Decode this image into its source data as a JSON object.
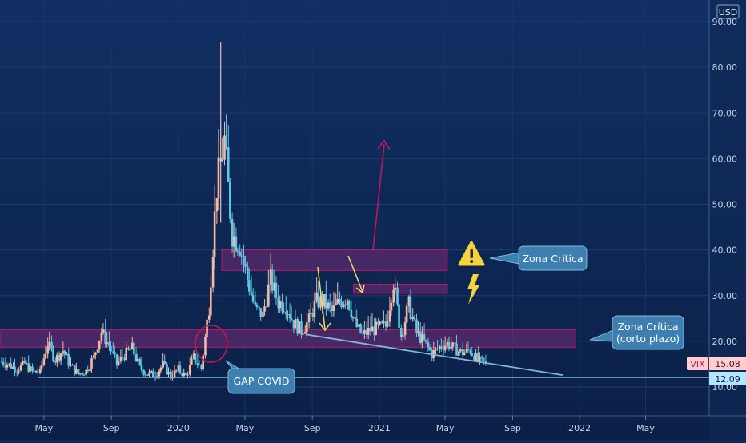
{
  "currency_label": "USD",
  "symbol_label": "VIX",
  "last_price_label": "15.08",
  "support_price_label": "12.09",
  "annotations": {
    "zona_critica": "Zona Crítica",
    "zona_critica_corto_1": "Zona Crítica",
    "zona_critica_corto_2": "(corto plazo)",
    "gap_covid": "GAP COVID"
  },
  "colors": {
    "background": "#0f2a57",
    "up_candle": "#5ec8e6",
    "down_candle": "#f2b9a7",
    "zone_fill": "#5b2a6e",
    "zone_stroke": "#c2185b",
    "trendline": "#7fb8dc",
    "arrow": "#c2185b",
    "yellow_arrow": "#f5d76e",
    "callout": "#3d7fb0",
    "last_price_badge": "#ffcdd2",
    "support_badge": "#b3e5fc"
  },
  "chart_data": {
    "type": "candlestick",
    "title": "",
    "ylabel": "",
    "xlabel": "",
    "ylim": [
      0,
      92
    ],
    "y_ticks": [
      10,
      20,
      30,
      40,
      50,
      60,
      70,
      80,
      90
    ],
    "y_tick_labels": [
      "10.00",
      "20.00",
      "30.00",
      "40.00",
      "50.00",
      "60.00",
      "70.00",
      "80.00",
      "90.00"
    ],
    "x_tick_labels": [
      {
        "label": "May",
        "date": "2019-05-01"
      },
      {
        "label": "Sep",
        "date": "2019-09-01"
      },
      {
        "label": "2020",
        "date": "2020-01-01"
      },
      {
        "label": "May",
        "date": "2020-05-01"
      },
      {
        "label": "Sep",
        "date": "2020-09-01"
      },
      {
        "label": "2021",
        "date": "2021-01-01"
      },
      {
        "label": "May",
        "date": "2021-05-01"
      },
      {
        "label": "Sep",
        "date": "2021-09-01"
      },
      {
        "label": "2022",
        "date": "2022-01-01"
      },
      {
        "label": "May",
        "date": "2022-05-01"
      }
    ],
    "xlim": [
      "2019-02-10",
      "2022-08-25"
    ],
    "series": [
      {
        "values": [
          {
            "date": "2019-02-13",
            "close": 15.5
          },
          {
            "date": "2019-02-27",
            "close": 14.8
          },
          {
            "date": "2019-03-13",
            "close": 13.9
          },
          {
            "date": "2019-03-27",
            "close": 15.1
          },
          {
            "date": "2019-04-10",
            "close": 13.3
          },
          {
            "date": "2019-04-24",
            "close": 13.2
          },
          {
            "date": "2019-05-08",
            "close": 19.5
          },
          {
            "date": "2019-05-22",
            "close": 16.0
          },
          {
            "date": "2019-06-05",
            "close": 18.0
          },
          {
            "date": "2019-06-19",
            "close": 14.5
          },
          {
            "date": "2019-07-03",
            "close": 12.8
          },
          {
            "date": "2019-07-17",
            "close": 13.5
          },
          {
            "date": "2019-07-31",
            "close": 16.5
          },
          {
            "date": "2019-08-14",
            "close": 22.1
          },
          {
            "date": "2019-08-28",
            "close": 19.0
          },
          {
            "date": "2019-09-11",
            "close": 15.0
          },
          {
            "date": "2019-09-25",
            "close": 17.0
          },
          {
            "date": "2019-10-09",
            "close": 18.5
          },
          {
            "date": "2019-10-23",
            "close": 14.2
          },
          {
            "date": "2019-11-06",
            "close": 12.8
          },
          {
            "date": "2019-11-20",
            "close": 12.7
          },
          {
            "date": "2019-12-04",
            "close": 14.8
          },
          {
            "date": "2019-12-18",
            "close": 12.3
          },
          {
            "date": "2020-01-01",
            "close": 13.8
          },
          {
            "date": "2020-01-15",
            "close": 12.4
          },
          {
            "date": "2020-01-29",
            "close": 16.4
          },
          {
            "date": "2020-02-12",
            "close": 14.0
          },
          {
            "date": "2020-02-26",
            "close": 27.6
          },
          {
            "date": "2020-03-11",
            "close": 53.9
          },
          {
            "date": "2020-03-25",
            "close": 63.9
          },
          {
            "date": "2020-04-08",
            "close": 43.4
          },
          {
            "date": "2020-04-22",
            "close": 41.0
          },
          {
            "date": "2020-05-06",
            "close": 33.6
          },
          {
            "date": "2020-05-20",
            "close": 27.0
          },
          {
            "date": "2020-06-03",
            "close": 25.7
          },
          {
            "date": "2020-06-17",
            "close": 33.5
          },
          {
            "date": "2020-07-01",
            "close": 28.6
          },
          {
            "date": "2020-07-15",
            "close": 27.8
          },
          {
            "date": "2020-07-29",
            "close": 24.1
          },
          {
            "date": "2020-08-12",
            "close": 22.3
          },
          {
            "date": "2020-08-26",
            "close": 24.5
          },
          {
            "date": "2020-09-09",
            "close": 28.8
          },
          {
            "date": "2020-09-23",
            "close": 28.5
          },
          {
            "date": "2020-10-07",
            "close": 26.4
          },
          {
            "date": "2020-10-21",
            "close": 28.7
          },
          {
            "date": "2020-11-04",
            "close": 29.6
          },
          {
            "date": "2020-11-18",
            "close": 23.8
          },
          {
            "date": "2020-12-02",
            "close": 21.2
          },
          {
            "date": "2020-12-16",
            "close": 22.5
          },
          {
            "date": "2020-12-30",
            "close": 22.8
          },
          {
            "date": "2021-01-13",
            "close": 23.3
          },
          {
            "date": "2021-01-27",
            "close": 33.0
          },
          {
            "date": "2021-02-10",
            "close": 21.3
          },
          {
            "date": "2021-02-24",
            "close": 28.0
          },
          {
            "date": "2021-03-10",
            "close": 21.9
          },
          {
            "date": "2021-03-24",
            "close": 19.8
          },
          {
            "date": "2021-04-07",
            "close": 17.2
          },
          {
            "date": "2021-04-21",
            "close": 18.7
          },
          {
            "date": "2021-05-05",
            "close": 19.5
          },
          {
            "date": "2021-05-19",
            "close": 18.3
          },
          {
            "date": "2021-06-02",
            "close": 17.5
          },
          {
            "date": "2021-06-16",
            "close": 18.0
          },
          {
            "date": "2021-06-30",
            "close": 15.8
          },
          {
            "date": "2021-07-14",
            "close": 15.1
          }
        ]
      }
    ],
    "zones": [
      {
        "name": "zona-critica",
        "y_low": 35.5,
        "y_high": 40.0,
        "x_start": "2020-03-20",
        "x_end": "2021-05-05"
      },
      {
        "name": "zona-secundaria",
        "y_low": 30.5,
        "y_high": 32.5,
        "x_start": "2020-11-15",
        "x_end": "2021-05-05"
      },
      {
        "name": "zona-critica-corto-plazo",
        "y_low": 18.7,
        "y_high": 22.5,
        "x_start": "2019-02-10",
        "x_end": "2021-12-25"
      }
    ],
    "horizontal_lines": [
      {
        "name": "support-line",
        "y": 12.09,
        "x_start": "2019-04-20",
        "x_end": "2022-08-25"
      }
    ],
    "trendlines": [
      {
        "name": "descending-trendline",
        "points": [
          {
            "date": "2020-08-20",
            "y": 21.5
          },
          {
            "date": "2021-12-01",
            "y": 12.6
          }
        ]
      }
    ]
  }
}
